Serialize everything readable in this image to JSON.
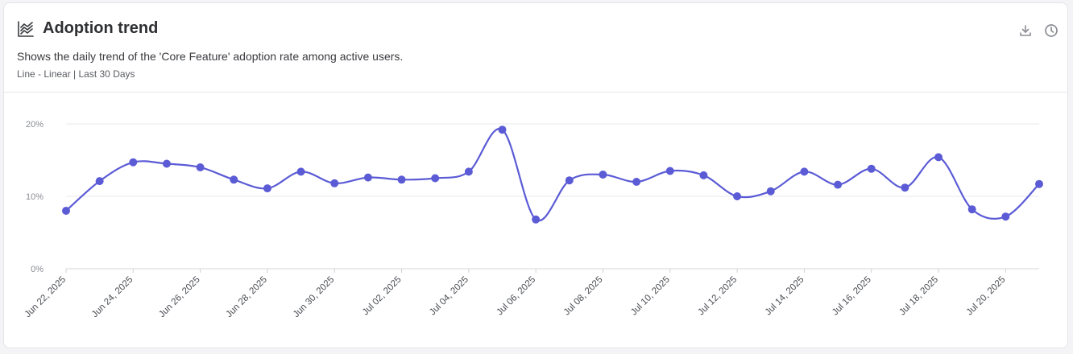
{
  "header": {
    "title": "Adoption trend",
    "subtitle": "Shows the daily trend of the 'Core Feature' adoption rate among active users.",
    "meta": "Line - Linear | Last 30 Days",
    "icons": {
      "title": "line-chart-icon",
      "download": "download-icon",
      "history": "clock-icon"
    }
  },
  "colors": {
    "line": "#5b5bd6",
    "grid": "#e9e9ec",
    "axis_text": "#8a8c92"
  },
  "chart_data": {
    "type": "line",
    "title": "",
    "xlabel": "",
    "ylabel": "",
    "ylim": [
      0,
      20
    ],
    "yticks": [
      "0%",
      "10%",
      "20%"
    ],
    "ytick_values": [
      0,
      10,
      20
    ],
    "grid": true,
    "x": [
      "Jun 22, 2025",
      "Jun 23, 2025",
      "Jun 24, 2025",
      "Jun 25, 2025",
      "Jun 26, 2025",
      "Jun 27, 2025",
      "Jun 28, 2025",
      "Jun 29, 2025",
      "Jun 30, 2025",
      "Jul 01, 2025",
      "Jul 02, 2025",
      "Jul 03, 2025",
      "Jul 04, 2025",
      "Jul 05, 2025",
      "Jul 06, 2025",
      "Jul 07, 2025",
      "Jul 08, 2025",
      "Jul 09, 2025",
      "Jul 10, 2025",
      "Jul 11, 2025",
      "Jul 12, 2025",
      "Jul 13, 2025",
      "Jul 14, 2025",
      "Jul 15, 2025",
      "Jul 16, 2025",
      "Jul 17, 2025",
      "Jul 18, 2025",
      "Jul 19, 2025",
      "Jul 20, 2025",
      "Jul 21, 2025"
    ],
    "xtick_labels": [
      "Jun 22, 2025",
      "Jun 24, 2025",
      "Jun 26, 2025",
      "Jun 28, 2025",
      "Jun 30, 2025",
      "Jul 02, 2025",
      "Jul 04, 2025",
      "Jul 06, 2025",
      "Jul 08, 2025",
      "Jul 10, 2025",
      "Jul 12, 2025",
      "Jul 14, 2025",
      "Jul 16, 2025",
      "Jul 18, 2025",
      "Jul 20, 2025"
    ],
    "series": [
      {
        "values": [
          8.0,
          12.1,
          14.7,
          14.5,
          14.0,
          12.3,
          11.1,
          13.4,
          11.8,
          12.6,
          12.3,
          12.5,
          13.4,
          19.2,
          6.8,
          12.2,
          13.0,
          12.0,
          13.5,
          12.9,
          10.0,
          10.7,
          13.4,
          11.6,
          13.8,
          11.2,
          15.4,
          8.2,
          7.2,
          11.7
        ]
      }
    ]
  }
}
